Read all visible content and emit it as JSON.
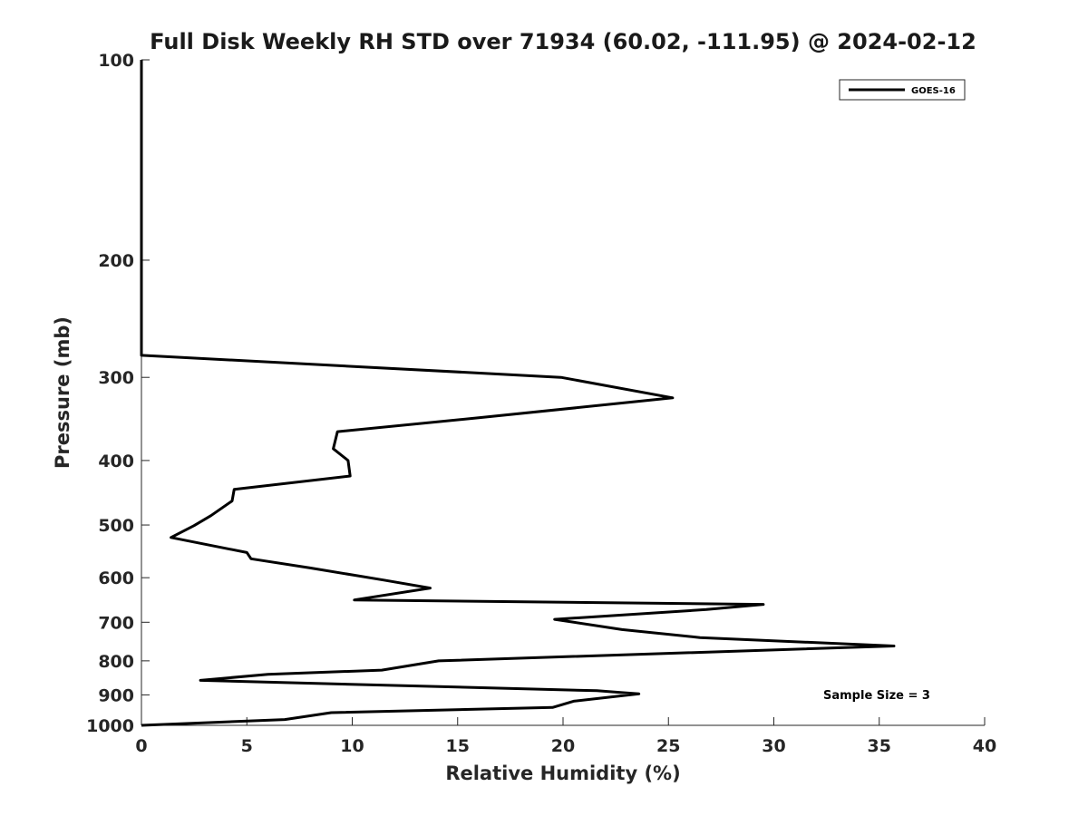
{
  "chart_data": {
    "type": "line",
    "title": "Full Disk Weekly RH STD over 71934 (60.02, -111.95) @ 2024-02-12",
    "xlabel": "Relative Humidity (%)",
    "ylabel": "Pressure (mb)",
    "xlim": [
      0,
      40
    ],
    "ylim": [
      1000,
      100
    ],
    "yscale": "log",
    "grid": false,
    "legend_position": "top-right",
    "x_ticks": [
      0,
      5,
      10,
      15,
      20,
      25,
      30,
      35,
      40
    ],
    "y_ticks": [
      100,
      200,
      300,
      400,
      500,
      600,
      700,
      800,
      900,
      1000
    ],
    "series": [
      {
        "name": "GOES-16",
        "color": "#000000",
        "points": [
          [
            0,
            1000
          ],
          [
            6.8,
            980
          ],
          [
            9.0,
            957
          ],
          [
            19.5,
            940
          ],
          [
            20.5,
            920
          ],
          [
            23.6,
            897
          ],
          [
            21.6,
            887
          ],
          [
            2.8,
            856
          ],
          [
            6.0,
            838
          ],
          [
            11.4,
            826
          ],
          [
            14.1,
            800
          ],
          [
            35.7,
            760
          ],
          [
            26.5,
            738
          ],
          [
            22.8,
            718
          ],
          [
            19.6,
            693
          ],
          [
            26.8,
            670
          ],
          [
            29.5,
            658
          ],
          [
            10.1,
            648
          ],
          [
            13.7,
            622
          ],
          [
            11.5,
            605
          ],
          [
            8.0,
            580
          ],
          [
            5.2,
            562
          ],
          [
            5.0,
            550
          ],
          [
            1.4,
            522
          ],
          [
            2.5,
            501
          ],
          [
            3.3,
            484
          ],
          [
            4.3,
            460
          ],
          [
            4.4,
            442
          ],
          [
            9.9,
            422
          ],
          [
            9.8,
            400
          ],
          [
            9.1,
            384
          ],
          [
            9.3,
            362
          ],
          [
            16.0,
            345
          ],
          [
            25.2,
            322
          ],
          [
            19.9,
            300
          ],
          [
            0,
            278
          ],
          [
            0,
            100
          ]
        ]
      }
    ],
    "annotations": [
      {
        "text": "Sample Size = 3"
      }
    ]
  }
}
